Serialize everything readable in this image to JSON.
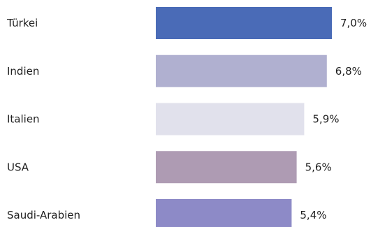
{
  "chart_data": {
    "type": "bar",
    "orientation": "horizontal",
    "categories": [
      "Türkei",
      "Indien",
      "Italien",
      "USA",
      "Saudi-Arabien"
    ],
    "values": [
      7.0,
      6.8,
      5.9,
      5.6,
      5.4
    ],
    "value_labels": [
      "7,0%",
      "6,8%",
      "5,9%",
      "5,6%",
      "5,4%"
    ],
    "bar_colors": [
      "#4a6bb7",
      "#b0b0d0",
      "#e1e1ec",
      "#ae9bb3",
      "#8d8ac7"
    ],
    "xlim": [
      0,
      7.0
    ],
    "grid": false,
    "legend": "none"
  }
}
